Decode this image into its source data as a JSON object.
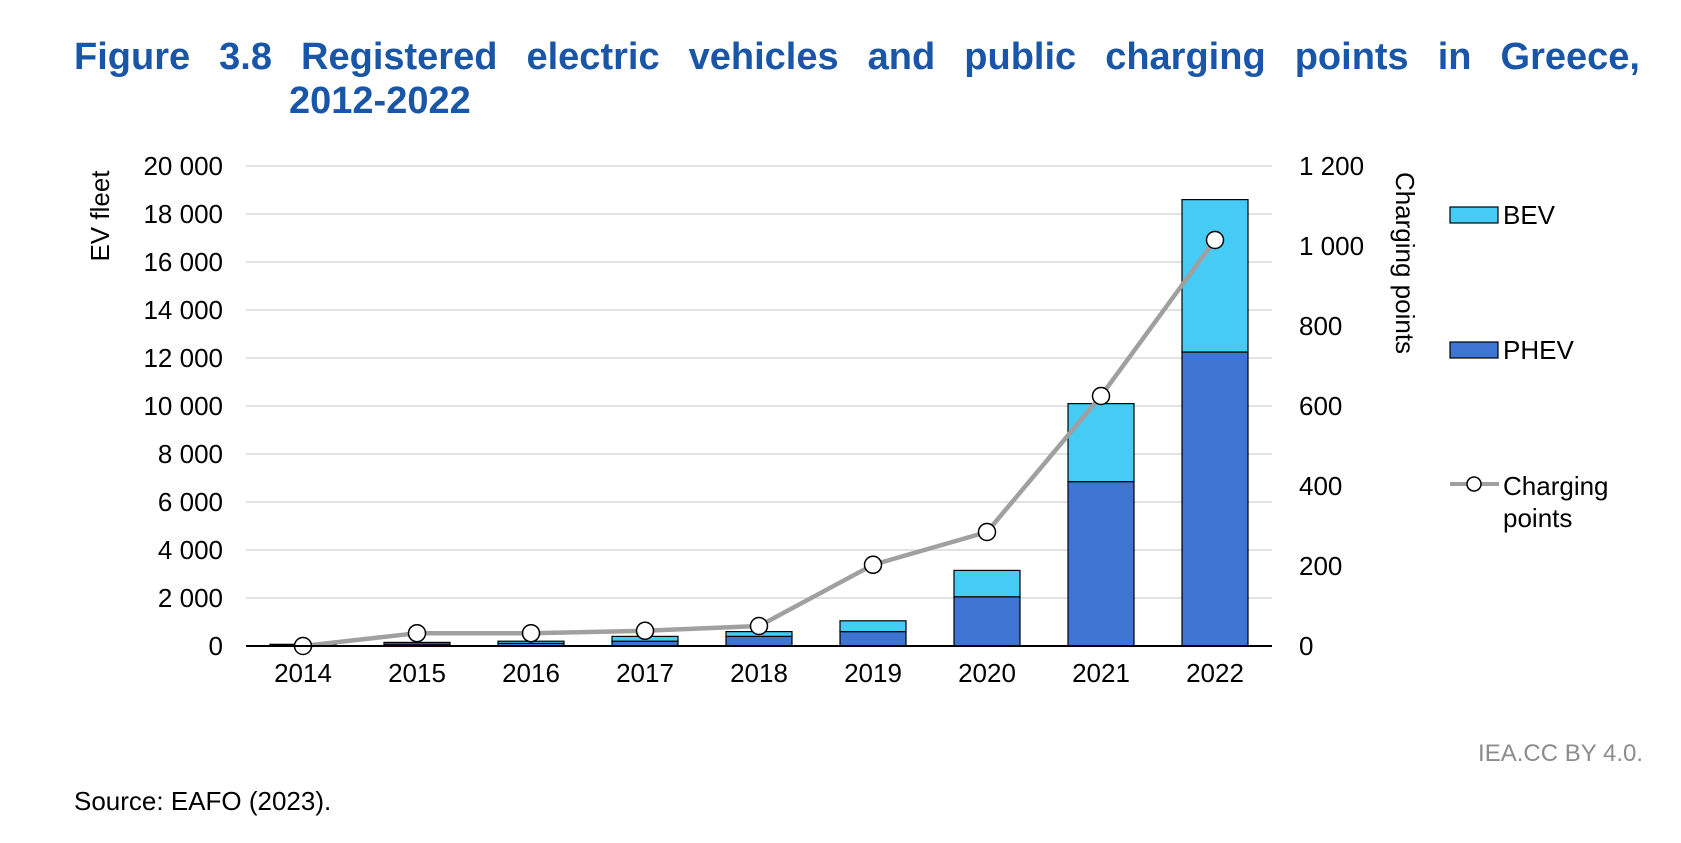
{
  "figure": {
    "title_line1": "Figure 3.8 Registered electric vehicles and public charging points in Greece,",
    "title_line2": "2012-2022",
    "credit": "IEA.CC BY 4.0.",
    "source": "Source: EAFO (2023)."
  },
  "colors": {
    "title": "#1a56a8",
    "bev": "#45cbf4",
    "phev": "#3e74d2",
    "charging_line": "#a0a0a0",
    "grid": "#d9d9d9",
    "credit": "#8c8c8c"
  },
  "chart_data": {
    "type": "bar",
    "stacked": true,
    "categories": [
      "2014",
      "2015",
      "2016",
      "2017",
      "2018",
      "2019",
      "2020",
      "2021",
      "2022"
    ],
    "series": [
      {
        "name": "PHEV",
        "kind": "bar",
        "axis": "left",
        "color": "#3e74d2",
        "values": [
          40,
          80,
          110,
          200,
          400,
          600,
          2050,
          6850,
          12250
        ]
      },
      {
        "name": "BEV",
        "kind": "bar",
        "axis": "left",
        "color": "#45cbf4",
        "values": [
          30,
          70,
          90,
          200,
          200,
          450,
          1100,
          3250,
          6350
        ]
      },
      {
        "name": "Charging points",
        "kind": "line",
        "axis": "right",
        "color": "#a0a0a0",
        "values": [
          0,
          32,
          32,
          38,
          50,
          203,
          285,
          625,
          1015
        ]
      }
    ],
    "ylabel": "EV fleet",
    "ylim": [
      0,
      20000
    ],
    "yticks": [
      "0",
      "2 000",
      "4 000",
      "6 000",
      "8 000",
      "10 000",
      "12 000",
      "14 000",
      "16 000",
      "18 000",
      "20 000"
    ],
    "y2label": "Charging points",
    "y2lim": [
      0,
      1200
    ],
    "y2ticks": [
      "0",
      "200",
      "400",
      "600",
      "800",
      "1 000",
      "1 200"
    ],
    "legend_labels": {
      "bev": "BEV",
      "phev": "PHEV",
      "charging_line1": "Charging",
      "charging_line2": "points"
    },
    "legend_position": "right",
    "grid": true
  }
}
